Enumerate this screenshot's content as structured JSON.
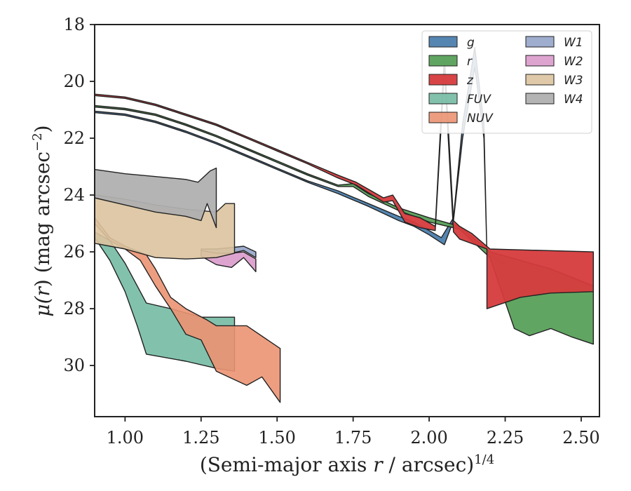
{
  "chart_data": {
    "type": "area",
    "xlabel": "(Semi-major axis r / arcsec)",
    "xlabel_parts": {
      "pre": "(Semi-major axis ",
      "var": "r",
      "post": " / arcsec)",
      "exp": "1/4"
    },
    "ylabel_parts": {
      "mu": "μ(",
      "var": "r",
      "rest": ") (mag arcsec",
      "exp": "−2",
      "close": ")"
    },
    "xlim": [
      0.9,
      2.56
    ],
    "ylim": [
      31.8,
      18.0
    ],
    "y_inverted": true,
    "x_ticks": [
      1.0,
      1.25,
      1.5,
      1.75,
      2.0,
      2.25,
      2.5
    ],
    "x_tick_labels": [
      "1.00",
      "1.25",
      "1.50",
      "1.75",
      "2.00",
      "2.25",
      "2.50"
    ],
    "y_ticks": [
      18,
      20,
      22,
      24,
      26,
      28,
      30
    ],
    "y_tick_labels": [
      "18",
      "20",
      "22",
      "24",
      "26",
      "28",
      "30"
    ],
    "grid": false,
    "legend_position": "top-right",
    "legend_columns": 2,
    "series": [
      {
        "name": "g",
        "color": "#4c7fae",
        "opacity": 0.95,
        "upper": [
          [
            0.9,
            21.05
          ],
          [
            1.0,
            21.15
          ],
          [
            1.1,
            21.4
          ],
          [
            1.2,
            21.75
          ],
          [
            1.3,
            22.15
          ],
          [
            1.4,
            22.6
          ],
          [
            1.5,
            23.05
          ],
          [
            1.6,
            23.5
          ],
          [
            1.7,
            23.85
          ],
          [
            1.8,
            24.3
          ],
          [
            1.9,
            24.75
          ],
          [
            1.95,
            24.95
          ],
          [
            2.0,
            25.25
          ],
          [
            2.04,
            25.5
          ],
          [
            2.08,
            24.8
          ],
          [
            2.11,
            21.5
          ],
          [
            2.15,
            18.8
          ],
          [
            2.18,
            21.5
          ],
          [
            2.19,
            26.05
          ],
          [
            2.25,
            26.4
          ]
        ],
        "lower": [
          [
            0.9,
            21.1
          ],
          [
            1.0,
            21.2
          ],
          [
            1.1,
            21.45
          ],
          [
            1.2,
            21.8
          ],
          [
            1.3,
            22.2
          ],
          [
            1.4,
            22.65
          ],
          [
            1.5,
            23.1
          ],
          [
            1.6,
            23.55
          ],
          [
            1.7,
            23.95
          ],
          [
            1.8,
            24.4
          ],
          [
            1.9,
            24.9
          ],
          [
            1.95,
            25.1
          ],
          [
            2.0,
            25.4
          ],
          [
            2.05,
            25.75
          ],
          [
            2.08,
            24.9
          ],
          [
            2.11,
            22.0
          ],
          [
            2.15,
            19.5
          ],
          [
            2.18,
            22.0
          ],
          [
            2.19,
            26.1
          ],
          [
            2.25,
            26.45
          ]
        ]
      },
      {
        "name": "r",
        "color": "#59a05a",
        "opacity": 0.95,
        "upper": [
          [
            0.9,
            20.85
          ],
          [
            1.0,
            20.95
          ],
          [
            1.1,
            21.15
          ],
          [
            1.2,
            21.5
          ],
          [
            1.3,
            21.9
          ],
          [
            1.4,
            22.35
          ],
          [
            1.5,
            22.8
          ],
          [
            1.6,
            23.25
          ],
          [
            1.7,
            23.65
          ],
          [
            1.75,
            23.6
          ],
          [
            1.8,
            23.95
          ],
          [
            1.9,
            24.45
          ],
          [
            2.0,
            24.8
          ],
          [
            2.1,
            25.1
          ],
          [
            2.2,
            26.0
          ],
          [
            2.3,
            26.3
          ],
          [
            2.4,
            26.6
          ],
          [
            2.54,
            27.2
          ]
        ],
        "lower": [
          [
            0.9,
            20.9
          ],
          [
            1.0,
            21.0
          ],
          [
            1.1,
            21.2
          ],
          [
            1.2,
            21.55
          ],
          [
            1.3,
            21.95
          ],
          [
            1.4,
            22.4
          ],
          [
            1.5,
            22.85
          ],
          [
            1.6,
            23.3
          ],
          [
            1.7,
            23.7
          ],
          [
            1.75,
            23.7
          ],
          [
            1.8,
            24.05
          ],
          [
            1.9,
            24.55
          ],
          [
            2.0,
            24.95
          ],
          [
            2.1,
            25.2
          ],
          [
            2.2,
            26.2
          ],
          [
            2.28,
            28.7
          ],
          [
            2.33,
            28.95
          ],
          [
            2.4,
            28.7
          ],
          [
            2.47,
            29.0
          ],
          [
            2.54,
            29.25
          ]
        ]
      },
      {
        "name": "z",
        "color": "#d63b3d",
        "opacity": 0.95,
        "upper": [
          [
            0.9,
            20.45
          ],
          [
            1.0,
            20.55
          ],
          [
            1.1,
            20.8
          ],
          [
            1.2,
            21.15
          ],
          [
            1.3,
            21.5
          ],
          [
            1.4,
            21.95
          ],
          [
            1.5,
            22.4
          ],
          [
            1.6,
            22.85
          ],
          [
            1.7,
            23.3
          ],
          [
            1.76,
            23.55
          ],
          [
            1.85,
            24.1
          ],
          [
            1.88,
            24.0
          ],
          [
            1.92,
            24.65
          ],
          [
            1.97,
            24.8
          ],
          [
            2.02,
            25.1
          ],
          [
            2.05,
            19.1
          ],
          [
            2.08,
            24.9
          ],
          [
            2.1,
            25.1
          ],
          [
            2.14,
            25.35
          ],
          [
            2.2,
            25.9
          ],
          [
            2.54,
            26.0
          ]
        ],
        "lower": [
          [
            0.9,
            20.5
          ],
          [
            1.0,
            20.6
          ],
          [
            1.1,
            20.85
          ],
          [
            1.2,
            21.2
          ],
          [
            1.3,
            21.55
          ],
          [
            1.4,
            22.0
          ],
          [
            1.5,
            22.45
          ],
          [
            1.6,
            22.9
          ],
          [
            1.7,
            23.4
          ],
          [
            1.76,
            23.65
          ],
          [
            1.85,
            24.25
          ],
          [
            1.88,
            24.2
          ],
          [
            1.92,
            24.95
          ],
          [
            1.97,
            25.15
          ],
          [
            2.02,
            25.25
          ],
          [
            2.05,
            19.6
          ],
          [
            2.08,
            25.3
          ],
          [
            2.1,
            25.55
          ],
          [
            2.19,
            25.9
          ],
          [
            2.19,
            28.0
          ],
          [
            2.3,
            27.6
          ],
          [
            2.4,
            27.45
          ],
          [
            2.54,
            27.4
          ]
        ]
      },
      {
        "name": "FUV",
        "color": "#74bba4",
        "opacity": 0.9,
        "upper": [
          [
            0.9,
            25.3
          ],
          [
            0.95,
            25.6
          ],
          [
            1.0,
            26.4
          ],
          [
            1.05,
            27.4
          ],
          [
            1.07,
            27.8
          ],
          [
            1.15,
            28.0
          ],
          [
            1.25,
            28.3
          ],
          [
            1.36,
            28.3
          ]
        ],
        "lower": [
          [
            0.9,
            25.5
          ],
          [
            0.95,
            26.3
          ],
          [
            1.0,
            27.4
          ],
          [
            1.04,
            28.6
          ],
          [
            1.07,
            29.6
          ],
          [
            1.2,
            29.85
          ],
          [
            1.3,
            30.1
          ],
          [
            1.36,
            30.2
          ]
        ]
      },
      {
        "name": "NUV",
        "color": "#ec9472",
        "opacity": 0.9,
        "upper": [
          [
            0.9,
            24.8
          ],
          [
            0.95,
            25.5
          ],
          [
            1.0,
            25.8
          ],
          [
            1.07,
            26.1
          ],
          [
            1.1,
            26.6
          ],
          [
            1.15,
            27.6
          ],
          [
            1.2,
            28.0
          ],
          [
            1.27,
            28.4
          ],
          [
            1.3,
            28.6
          ],
          [
            1.4,
            28.6
          ],
          [
            1.51,
            29.4
          ]
        ],
        "lower": [
          [
            0.9,
            25.0
          ],
          [
            0.95,
            25.6
          ],
          [
            1.0,
            25.9
          ],
          [
            1.05,
            26.3
          ],
          [
            1.1,
            27.2
          ],
          [
            1.15,
            28.0
          ],
          [
            1.2,
            28.9
          ],
          [
            1.25,
            29.1
          ],
          [
            1.3,
            30.2
          ],
          [
            1.4,
            30.7
          ],
          [
            1.45,
            30.4
          ],
          [
            1.51,
            31.3
          ]
        ]
      },
      {
        "name": "W1",
        "color": "#9aa9cb",
        "opacity": 0.95,
        "upper": [
          [
            1.25,
            25.9
          ],
          [
            1.3,
            25.9
          ],
          [
            1.35,
            25.85
          ],
          [
            1.39,
            25.8
          ],
          [
            1.43,
            26.0
          ]
        ],
        "lower": [
          [
            1.25,
            26.0
          ],
          [
            1.3,
            26.05
          ],
          [
            1.35,
            26.05
          ],
          [
            1.39,
            25.95
          ],
          [
            1.43,
            26.2
          ]
        ]
      },
      {
        "name": "W2",
        "color": "#dc9fcd",
        "opacity": 0.95,
        "upper": [
          [
            1.25,
            25.95
          ],
          [
            1.3,
            26.05
          ],
          [
            1.35,
            26.05
          ],
          [
            1.39,
            26.0
          ],
          [
            1.43,
            26.25
          ]
        ],
        "lower": [
          [
            1.25,
            26.15
          ],
          [
            1.3,
            26.45
          ],
          [
            1.35,
            26.55
          ],
          [
            1.39,
            26.2
          ],
          [
            1.43,
            26.7
          ]
        ]
      },
      {
        "name": "W3",
        "color": "#dcc39f",
        "opacity": 0.9,
        "upper": [
          [
            0.9,
            24.0
          ],
          [
            1.0,
            24.15
          ],
          [
            1.1,
            24.35
          ],
          [
            1.2,
            24.5
          ],
          [
            1.3,
            24.6
          ],
          [
            1.33,
            24.3
          ],
          [
            1.36,
            24.3
          ]
        ],
        "lower": [
          [
            0.9,
            25.7
          ],
          [
            1.0,
            25.9
          ],
          [
            1.1,
            26.2
          ],
          [
            1.2,
            26.25
          ],
          [
            1.3,
            26.2
          ],
          [
            1.36,
            26.05
          ]
        ]
      },
      {
        "name": "W4",
        "color": "#b0b0b0",
        "opacity": 0.95,
        "upper": [
          [
            0.9,
            23.1
          ],
          [
            1.0,
            23.25
          ],
          [
            1.1,
            23.35
          ],
          [
            1.2,
            23.45
          ],
          [
            1.24,
            23.55
          ],
          [
            1.28,
            23.15
          ],
          [
            1.3,
            23.05
          ]
        ],
        "lower": [
          [
            0.9,
            24.1
          ],
          [
            1.0,
            24.35
          ],
          [
            1.1,
            24.6
          ],
          [
            1.2,
            24.75
          ],
          [
            1.25,
            24.9
          ],
          [
            1.27,
            24.3
          ],
          [
            1.3,
            25.15
          ]
        ]
      }
    ]
  }
}
